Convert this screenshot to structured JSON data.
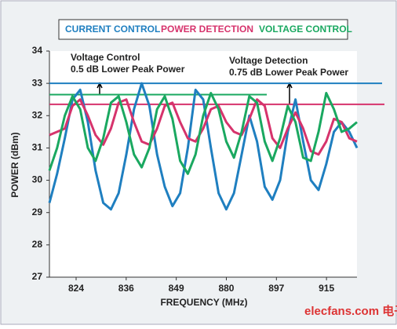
{
  "chart_data": {
    "type": "line",
    "xlabel": "FREQUENCY (MHz)",
    "ylabel": "POWER (dBm)",
    "xticks": [
      824,
      836,
      849,
      880,
      897,
      915
    ],
    "ylim": [
      27,
      34
    ],
    "yticks": [
      27,
      28,
      29,
      30,
      31,
      32,
      33,
      34
    ],
    "series": [
      {
        "name": "CURRENT CONTROL",
        "color": "#1f7fc0",
        "values": [
          29.3,
          30.2,
          31.3,
          32.5,
          32.8,
          31.8,
          30.3,
          29.3,
          29.1,
          29.6,
          30.8,
          32.2,
          33.0,
          32.3,
          30.8,
          29.8,
          29.2,
          29.6,
          31.0,
          32.8,
          32.5,
          31.0,
          29.6,
          29.1,
          29.6,
          30.8,
          32.0,
          31.2,
          29.8,
          29.4,
          30.0,
          31.5,
          32.5,
          31.2,
          30.0,
          29.7,
          30.5,
          31.5,
          31.8,
          31.5,
          31.0
        ]
      },
      {
        "name": "POWER DETECTION",
        "color": "#d6336c",
        "values": [
          31.4,
          31.5,
          31.6,
          32.3,
          32.5,
          32.0,
          31.4,
          31.1,
          31.6,
          32.4,
          32.5,
          31.8,
          31.2,
          31.1,
          31.6,
          32.3,
          32.4,
          31.8,
          31.3,
          31.2,
          31.6,
          32.2,
          32.3,
          31.8,
          31.5,
          31.4,
          31.9,
          32.5,
          32.3,
          31.3,
          31.0,
          31.6,
          32.1,
          31.6,
          30.9,
          30.8,
          31.2,
          31.9,
          31.8,
          31.3,
          31.2
        ]
      },
      {
        "name": "VOLTAGE CONTROL",
        "color": "#1aa860",
        "values": [
          30.3,
          31.0,
          32.0,
          32.6,
          32.2,
          31.0,
          30.6,
          31.3,
          32.4,
          32.6,
          31.8,
          30.8,
          30.4,
          31.0,
          32.2,
          32.6,
          31.9,
          30.6,
          30.2,
          30.8,
          32.0,
          32.7,
          32.2,
          31.2,
          30.7,
          31.5,
          32.6,
          32.4,
          31.2,
          30.6,
          31.3,
          32.3,
          31.8,
          30.7,
          30.6,
          31.5,
          32.7,
          32.2,
          31.5,
          31.6,
          31.8
        ]
      }
    ],
    "reference_lines": [
      {
        "value": 33,
        "color": "#1f7fc0"
      },
      {
        "value": 32.35,
        "color": "#d6336c"
      },
      {
        "value": 32.65,
        "color": "#1aa860"
      }
    ],
    "annotations": [
      "Voltage Control",
      "0.5 dB Lower Peak Power",
      "Voltage Detection",
      "0.75 dB Lower Peak Power"
    ],
    "watermark": "elecfans.com 电子发烧友"
  }
}
